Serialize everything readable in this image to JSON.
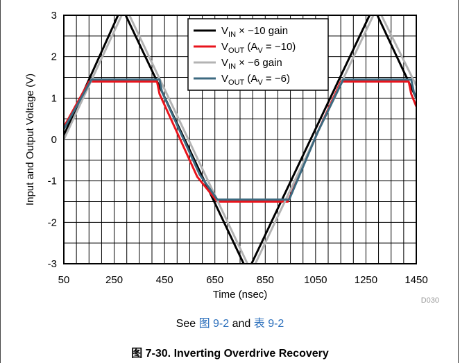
{
  "chart_data": {
    "type": "line",
    "xlabel": "Time (nsec)",
    "ylabel": "Input and Output Voltage (V)",
    "xlim": [
      50,
      1450
    ],
    "ylim": [
      -3,
      3
    ],
    "x_ticks": [
      "50",
      "250",
      "450",
      "650",
      "850",
      "1050",
      "1250",
      "1450"
    ],
    "y_ticks": [
      "-3",
      "-2",
      "-1",
      "0",
      "1",
      "2",
      "3"
    ],
    "grid": true,
    "legend_position": "top-right",
    "figure_id": "D030",
    "series": [
      {
        "name_main": "V",
        "name_sub": "IN",
        "name_rest": " × −10 gain",
        "color": "#000000",
        "x": [
          50,
          280,
          780,
          1280,
          1450
        ],
        "y": [
          0.1,
          3.2,
          -3.2,
          3.2,
          1.0
        ]
      },
      {
        "name_main": "V",
        "name_sub": "OUT",
        "name_rest": " (A",
        "name_sub2": "V",
        "name_rest2": " = −10)",
        "color": "#e8141c",
        "x": [
          50,
          150,
          420,
          430,
          580,
          660,
          940,
          1060,
          1150,
          1420,
          1430,
          1450
        ],
        "y": [
          0.3,
          1.4,
          1.4,
          1.1,
          -0.9,
          -1.5,
          -1.5,
          0.2,
          1.4,
          1.4,
          1.1,
          0.8
        ]
      },
      {
        "name_main": "V",
        "name_sub": "IN",
        "name_rest": " × −6 gain",
        "color": "#b3b3b3",
        "x": [
          50,
          295,
          795,
          1295,
          1450
        ],
        "y": [
          0.0,
          3.2,
          -3.2,
          3.2,
          1.3
        ]
      },
      {
        "name_main": "V",
        "name_sub": "OUT",
        "name_rest": " (A",
        "name_sub2": "V",
        "name_rest2": " = −6)",
        "color": "#3d6a80",
        "x": [
          50,
          160,
          430,
          440,
          590,
          660,
          945,
          1060,
          1160,
          1430,
          1440,
          1450
        ],
        "y": [
          0.25,
          1.45,
          1.45,
          1.15,
          -0.85,
          -1.45,
          -1.45,
          0.2,
          1.45,
          1.45,
          1.15,
          1.0
        ]
      }
    ]
  },
  "see_text": {
    "prefix": "See ",
    "link1": "图 9-2",
    "middle": " and ",
    "link2": "表 9-2"
  },
  "caption": "图 7-30. Inverting Overdrive Recovery"
}
